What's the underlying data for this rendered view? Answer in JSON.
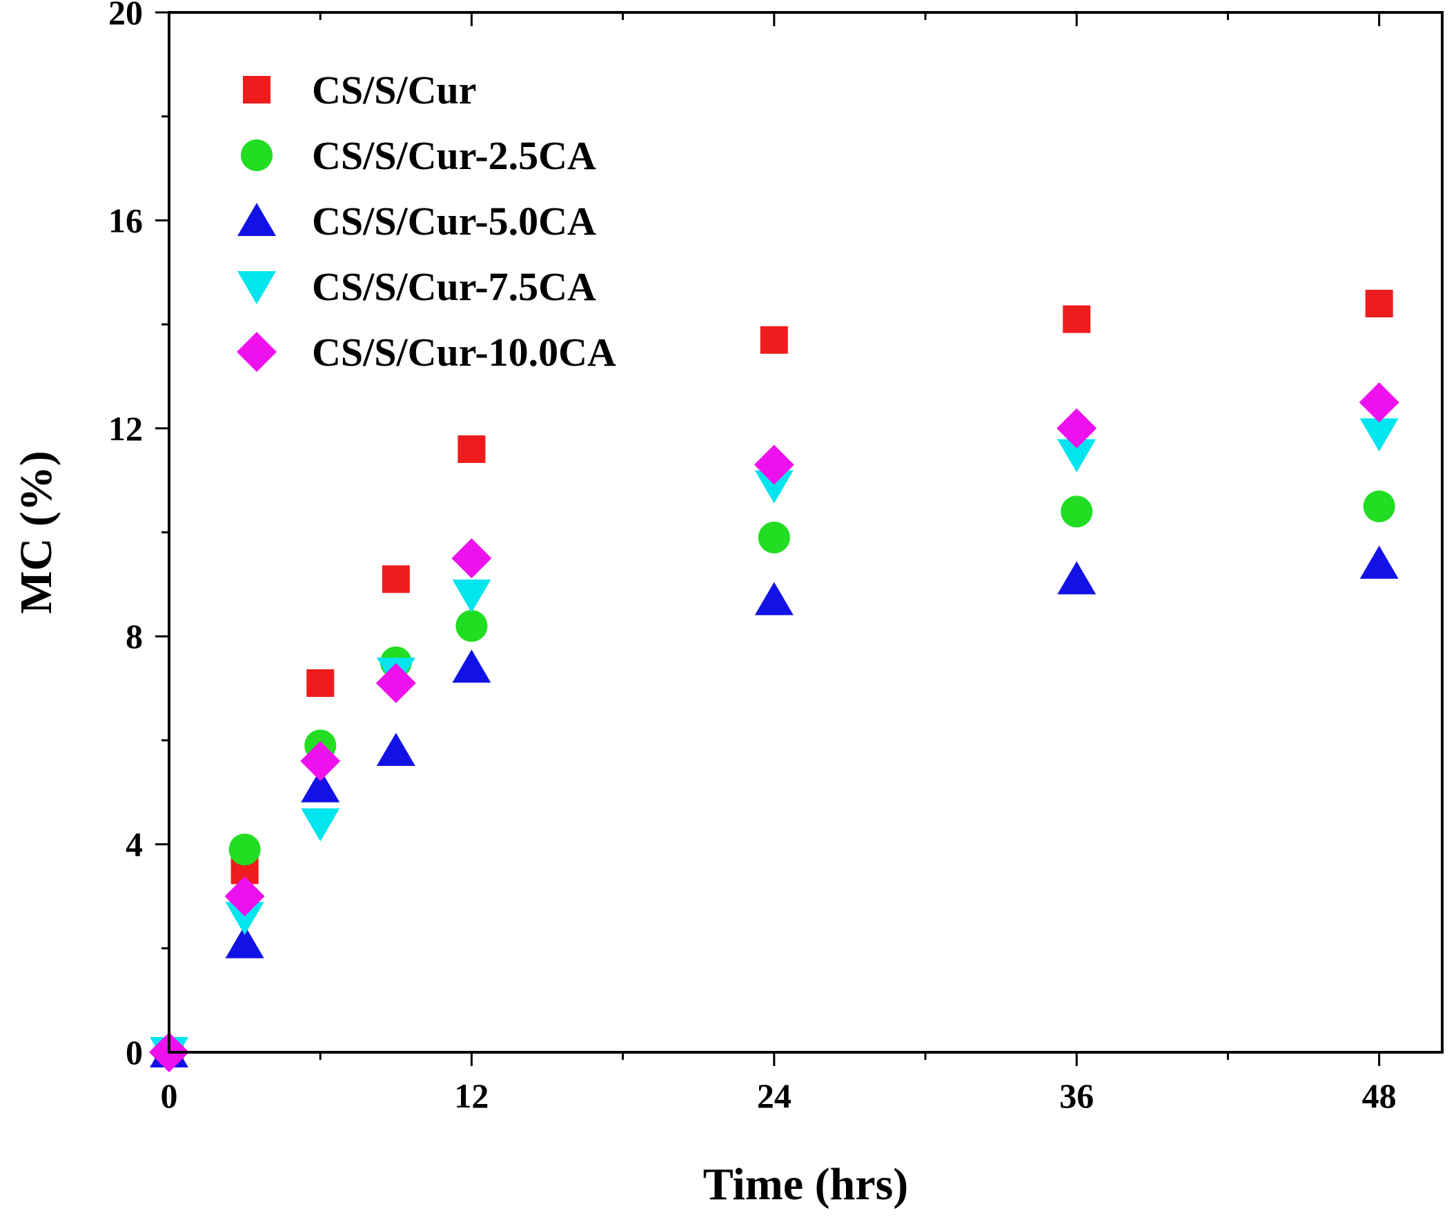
{
  "chart_data": {
    "type": "scatter",
    "title": "",
    "xlabel": "Time (hrs)",
    "ylabel": "MC (%)",
    "xlim": [
      0,
      50.5
    ],
    "ylim": [
      0,
      20
    ],
    "xticks": [
      0,
      12,
      24,
      36,
      48
    ],
    "xtick_labels": [
      "0",
      "12",
      "24",
      "36",
      "48"
    ],
    "yticks": [
      0,
      4,
      8,
      12,
      16,
      20
    ],
    "ytick_labels": [
      "0",
      "4",
      "8",
      "12",
      "16",
      "20"
    ],
    "x_minor_ticks": [
      6,
      18,
      30,
      42
    ],
    "y_minor_ticks": [
      2,
      6,
      10,
      14,
      18
    ],
    "grid": false,
    "legend_position": "top-left",
    "x": [
      0,
      3,
      6,
      9,
      12,
      24,
      36,
      48
    ],
    "series": [
      {
        "name": "CS/S/Cur",
        "marker": "square",
        "color": "#ee1c1c",
        "values": [
          0,
          3.5,
          7.1,
          9.1,
          11.6,
          13.7,
          14.1,
          14.4
        ]
      },
      {
        "name": "CS/S/Cur-2.5CA",
        "marker": "circle",
        "color": "#22dd22",
        "values": [
          0,
          3.9,
          5.9,
          7.5,
          8.2,
          9.9,
          10.4,
          10.5
        ]
      },
      {
        "name": "CS/S/Cur-5.0CA",
        "marker": "triangle-up",
        "color": "#1212e6",
        "values": [
          0,
          2.1,
          5.1,
          5.8,
          7.4,
          8.7,
          9.1,
          9.4
        ]
      },
      {
        "name": "CS/S/Cur-7.5CA",
        "marker": "triangle-down",
        "color": "#00e5ee",
        "values": [
          0,
          2.6,
          4.4,
          7.3,
          8.8,
          10.9,
          11.5,
          11.9
        ]
      },
      {
        "name": "CS/S/Cur-10.0CA",
        "marker": "diamond",
        "color": "#ee11ee",
        "values": [
          0,
          3.0,
          5.6,
          7.1,
          9.5,
          11.3,
          12.0,
          12.5
        ]
      }
    ]
  }
}
